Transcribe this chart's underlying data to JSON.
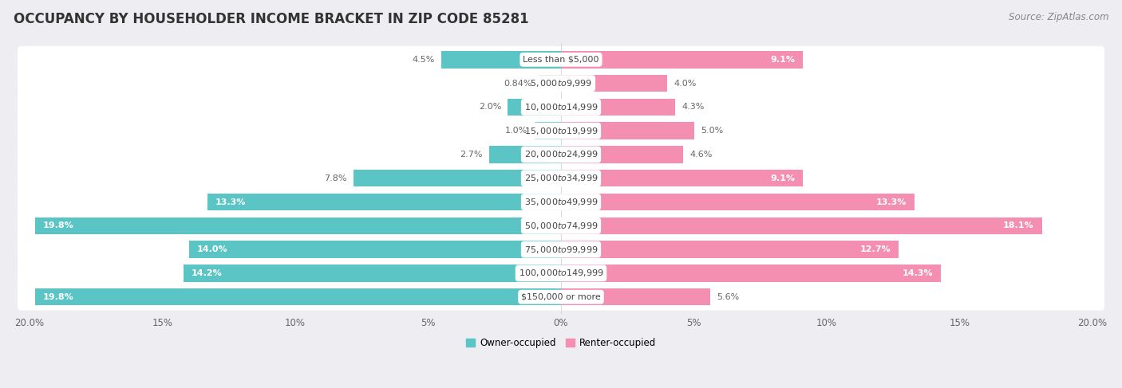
{
  "title": "OCCUPANCY BY HOUSEHOLDER INCOME BRACKET IN ZIP CODE 85281",
  "source": "Source: ZipAtlas.com",
  "categories": [
    "Less than $5,000",
    "$5,000 to $9,999",
    "$10,000 to $14,999",
    "$15,000 to $19,999",
    "$20,000 to $24,999",
    "$25,000 to $34,999",
    "$35,000 to $49,999",
    "$50,000 to $74,999",
    "$75,000 to $99,999",
    "$100,000 to $149,999",
    "$150,000 or more"
  ],
  "owner_values": [
    4.5,
    0.84,
    2.0,
    1.0,
    2.7,
    7.8,
    13.3,
    19.8,
    14.0,
    14.2,
    19.8
  ],
  "renter_values": [
    9.1,
    4.0,
    4.3,
    5.0,
    4.6,
    9.1,
    13.3,
    18.1,
    12.7,
    14.3,
    5.6
  ],
  "owner_labels": [
    "4.5%",
    "0.84%",
    "2.0%",
    "1.0%",
    "2.7%",
    "7.8%",
    "13.3%",
    "19.8%",
    "14.0%",
    "14.2%",
    "19.8%"
  ],
  "renter_labels": [
    "9.1%",
    "4.0%",
    "4.3%",
    "5.0%",
    "4.6%",
    "9.1%",
    "13.3%",
    "18.1%",
    "12.7%",
    "14.3%",
    "5.6%"
  ],
  "owner_color": "#5BC4C4",
  "renter_color": "#F48FB1",
  "background_color": "#ededf2",
  "row_color": "#ffffff",
  "xlim": 20.0,
  "legend_owner": "Owner-occupied",
  "legend_renter": "Renter-occupied",
  "title_fontsize": 12,
  "source_fontsize": 8.5,
  "cat_fontsize": 8,
  "val_fontsize": 8,
  "axis_label_fontsize": 8.5,
  "xticks": [
    -20,
    -15,
    -10,
    -5,
    0,
    5,
    10,
    15,
    20
  ],
  "xtick_labels": [
    "20.0%",
    "15%",
    "10%",
    "5%",
    "0%",
    "5%",
    "10%",
    "15%",
    "20.0%"
  ]
}
